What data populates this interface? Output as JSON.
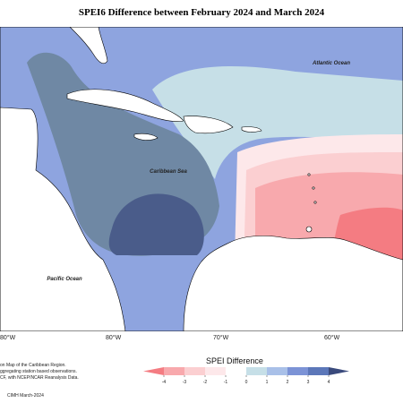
{
  "title": "SPEI6 Difference between February 2024 and March 2024",
  "map": {
    "labels": {
      "atlantic": "Atlantic Ocean",
      "caribbean": "Caribbean Sea",
      "pacific": "Pacific Ocean"
    },
    "longitude_ticks": [
      "80°W",
      "80°W",
      "70°W",
      "60°W"
    ]
  },
  "footnotes": {
    "line1": "on Map of the Caribbean Region.",
    "line2": "ggregating station based observations.",
    "line3": "CF, with NCEP/NCAR Reanalysis Data.",
    "credit": "CIMH March-2024"
  },
  "legend": {
    "title": "SPEI Difference",
    "ticks": [
      "-4",
      "-3",
      "-2",
      "-1",
      "0",
      "1",
      "2",
      "3",
      "4"
    ],
    "colors": [
      "#f47c82",
      "#f8a9ad",
      "#fbcfd1",
      "#fde8ea",
      "#ffffff",
      "#c6dfe7",
      "#a9c0e8",
      "#7c93d6",
      "#5c77b9",
      "#3a4a7c"
    ]
  }
}
